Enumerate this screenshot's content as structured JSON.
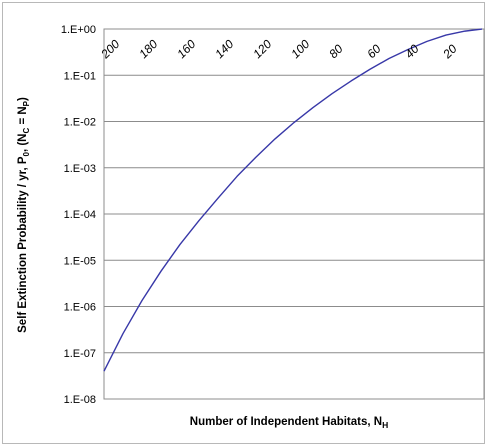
{
  "chart_data": {
    "type": "line",
    "title": "",
    "xlabel": "Number of Independent Habitats, N",
    "xlabel_subscript": "H",
    "ylabel_parts": [
      {
        "text": "Self Extinction Probability / yr, P"
      },
      {
        "text": "0",
        "sub": true
      },
      {
        "text": ", (N"
      },
      {
        "text": "C",
        "sub": true
      },
      {
        "text": " = N"
      },
      {
        "text": "P",
        "sub": true
      },
      {
        "text": ")"
      }
    ],
    "xlim": [
      0,
      200
    ],
    "x_reversed": true,
    "x_axis_position": "top",
    "x_tick_labels": [
      "200",
      "180",
      "160",
      "140",
      "120",
      "100",
      "80",
      "60",
      "40",
      "20"
    ],
    "x_ticks": [
      200,
      180,
      160,
      140,
      120,
      100,
      80,
      60,
      40,
      20
    ],
    "y_scale": "log",
    "ylim": [
      1e-08,
      1
    ],
    "y_tick_labels": [
      "1.E+00",
      "1.E-01",
      "1.E-02",
      "1.E-03",
      "1.E-04",
      "1.E-05",
      "1.E-06",
      "1.E-07",
      "1.E-08"
    ],
    "y_ticks": [
      1,
      0.1,
      0.01,
      0.001,
      0.0001,
      1e-05,
      1e-06,
      1e-07,
      1e-08
    ],
    "grid": "horizontal",
    "legend": "none",
    "series": [
      {
        "color": "#3838a8",
        "x": [
          200,
          190,
          180,
          170,
          160,
          150,
          140,
          130,
          120,
          110,
          100,
          90,
          80,
          70,
          60,
          50,
          40,
          30,
          20,
          10,
          1
        ],
        "y": [
          4e-08,
          2.6e-07,
          1.35e-06,
          5.8e-06,
          2.2e-05,
          7.2e-05,
          0.00022,
          0.00065,
          0.0017,
          0.0042,
          0.0095,
          0.02,
          0.04,
          0.075,
          0.135,
          0.23,
          0.36,
          0.54,
          0.74,
          0.9,
          0.995
        ]
      }
    ]
  }
}
